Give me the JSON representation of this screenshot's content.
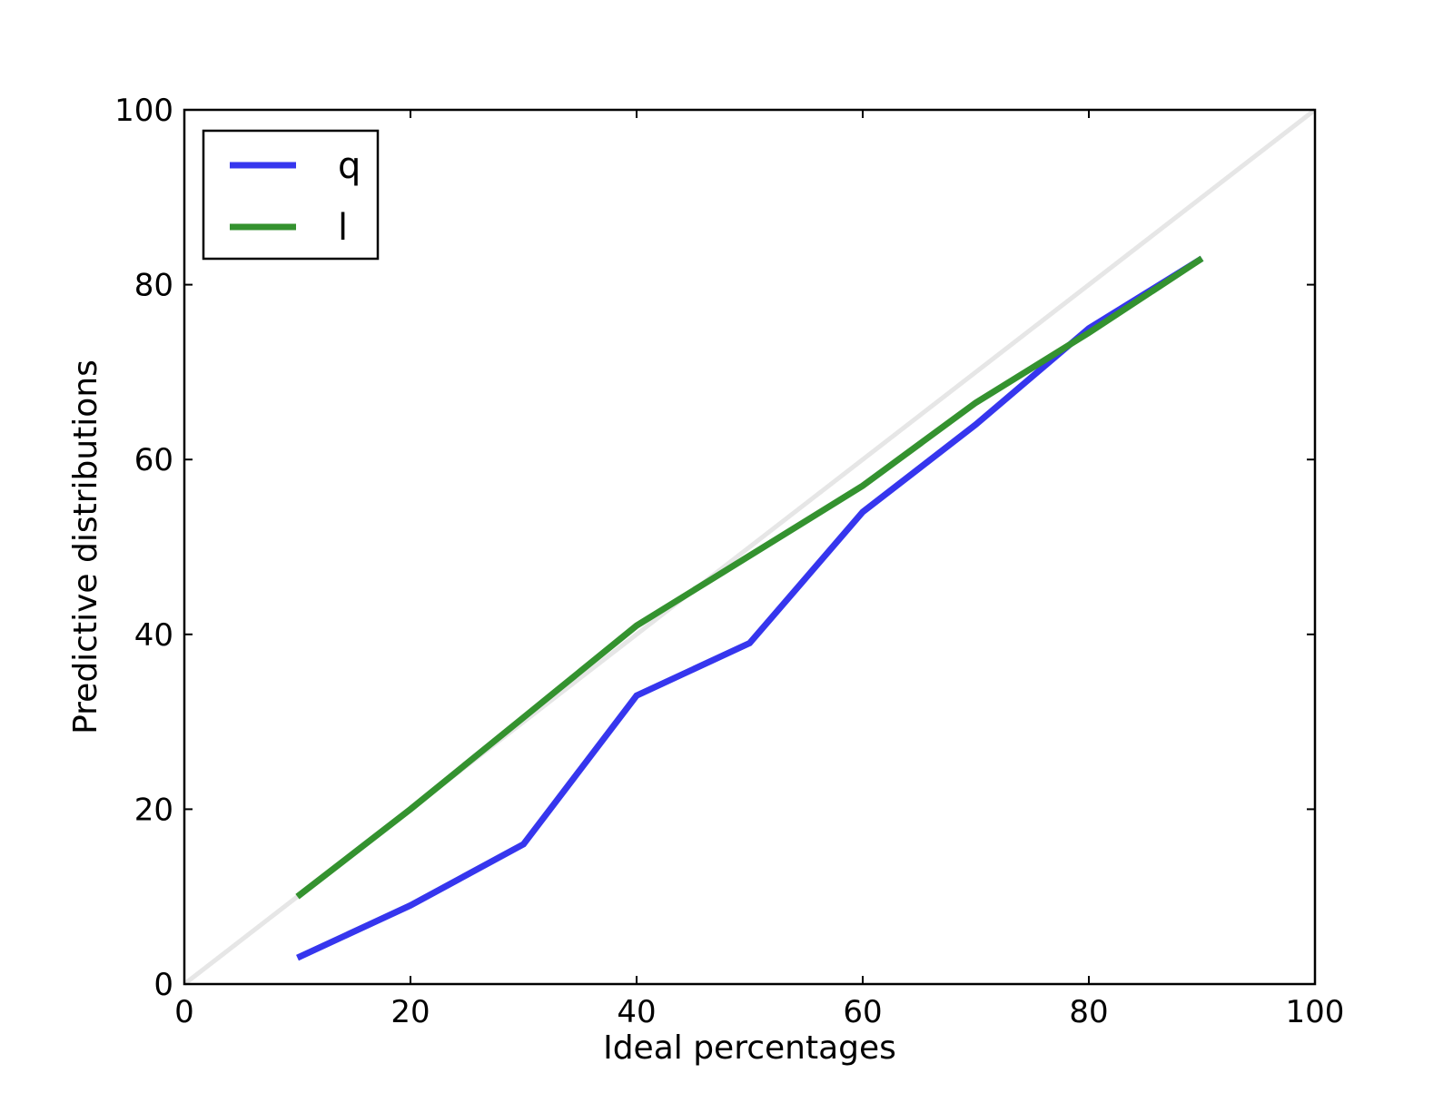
{
  "chart_data": {
    "type": "line",
    "title": "",
    "xlabel": "Ideal percentages",
    "ylabel": "Predictive distributions",
    "xlim": [
      0,
      100
    ],
    "ylim": [
      0,
      100
    ],
    "xticks": [
      0,
      20,
      40,
      60,
      80,
      100
    ],
    "yticks": [
      0,
      20,
      40,
      60,
      80,
      100
    ],
    "xtick_labels": [
      "0",
      "20",
      "40",
      "60",
      "80",
      "100"
    ],
    "ytick_labels": [
      "0",
      "20",
      "40",
      "60",
      "80",
      "100"
    ],
    "grid": false,
    "legend_position": "top-left",
    "reference_line": {
      "x": [
        0,
        100
      ],
      "y": [
        0,
        100
      ],
      "color": "#e6e6e6"
    },
    "series": [
      {
        "name": "q",
        "color": "#3636ee",
        "x": [
          10,
          20,
          30,
          40,
          50,
          60,
          70,
          80,
          90
        ],
        "y": [
          3,
          9,
          16,
          33,
          39,
          54,
          64,
          75,
          83
        ]
      },
      {
        "name": "l",
        "color": "#34922f",
        "x": [
          10,
          20,
          30,
          40,
          50,
          60,
          70,
          80,
          90
        ],
        "y": [
          10,
          20,
          30.5,
          41,
          49,
          57,
          66.5,
          74.5,
          83
        ]
      }
    ]
  }
}
